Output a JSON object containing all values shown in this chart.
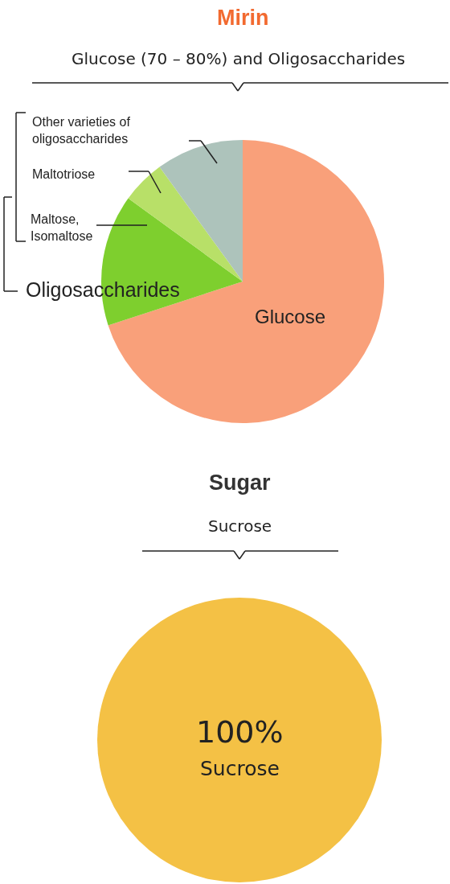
{
  "chart_data": [
    {
      "type": "pie",
      "title": "Mirin",
      "subtitle": "Glucose (70 – 80%) and Oligosaccharides",
      "categories": [
        "Glucose",
        "Maltose, Isomaltose",
        "Maltotriose",
        "Other varieties of oligosaccharides"
      ],
      "values": [
        70,
        15,
        5,
        10
      ],
      "colors": [
        "#f9a07a",
        "#7ecf2e",
        "#b8e068",
        "#adc3bb"
      ],
      "annotations": [
        "Oligosaccharides"
      ]
    },
    {
      "type": "pie",
      "title": "Sugar",
      "subtitle": "Sucrose",
      "categories": [
        "Sucrose"
      ],
      "values": [
        100
      ],
      "colors": [
        "#f4c145"
      ],
      "value_labels": [
        "100%"
      ]
    }
  ]
}
